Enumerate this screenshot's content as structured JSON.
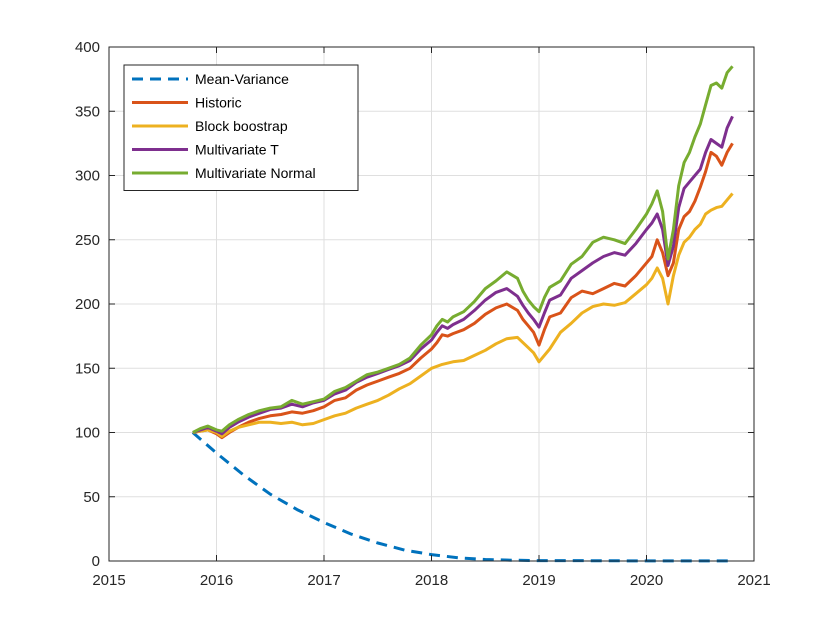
{
  "chart_data": {
    "type": "line",
    "title": "",
    "xlabel": "",
    "ylabel": "",
    "xlim": [
      2015,
      2021
    ],
    "ylim": [
      0,
      400
    ],
    "xticks": [
      2015,
      2016,
      2017,
      2018,
      2019,
      2020,
      2021
    ],
    "yticks": [
      0,
      50,
      100,
      150,
      200,
      250,
      300,
      350,
      400
    ],
    "grid": true,
    "legend": "top-left",
    "series": [
      {
        "name": "Mean-Variance",
        "color": "#0072BD",
        "dash": "dashed",
        "x": [
          2015.78,
          2016.0,
          2016.25,
          2016.5,
          2016.75,
          2017.0,
          2017.25,
          2017.5,
          2017.75,
          2018.0,
          2018.25,
          2018.5,
          2018.75,
          2019.0,
          2019.5,
          2020.0,
          2020.5,
          2020.8
        ],
        "y": [
          100,
          84,
          67,
          52,
          40,
          30,
          21,
          14,
          8.5,
          5,
          2.5,
          1.2,
          0.6,
          0.3,
          0.2,
          0.1,
          0.1,
          0.1
        ]
      },
      {
        "name": "Historic",
        "color": "#D95319",
        "dash": "solid",
        "x": [
          2015.78,
          2015.85,
          2015.92,
          2016.0,
          2016.05,
          2016.12,
          2016.2,
          2016.3,
          2016.4,
          2016.5,
          2016.6,
          2016.7,
          2016.8,
          2016.9,
          2017.0,
          2017.1,
          2017.2,
          2017.3,
          2017.4,
          2017.5,
          2017.6,
          2017.7,
          2017.8,
          2017.9,
          2018.0,
          2018.05,
          2018.1,
          2018.15,
          2018.2,
          2018.3,
          2018.4,
          2018.5,
          2018.6,
          2018.7,
          2018.8,
          2018.85,
          2018.9,
          2018.95,
          2019.0,
          2019.05,
          2019.1,
          2019.2,
          2019.3,
          2019.4,
          2019.5,
          2019.6,
          2019.7,
          2019.8,
          2019.9,
          2020.0,
          2020.05,
          2020.1,
          2020.15,
          2020.2,
          2020.25,
          2020.3,
          2020.35,
          2020.4,
          2020.45,
          2020.5,
          2020.55,
          2020.6,
          2020.65,
          2020.7,
          2020.75,
          2020.8
        ],
        "y": [
          100,
          101,
          102,
          99,
          96,
          100,
          104,
          108,
          111,
          113,
          114,
          116,
          115,
          117,
          120,
          125,
          127,
          133,
          137,
          140,
          143,
          146,
          150,
          158,
          165,
          170,
          176,
          175,
          177,
          180,
          185,
          192,
          197,
          200,
          195,
          188,
          183,
          178,
          168,
          180,
          190,
          193,
          205,
          210,
          208,
          212,
          216,
          214,
          222,
          232,
          237,
          250,
          240,
          222,
          232,
          258,
          268,
          272,
          280,
          291,
          303,
          318,
          315,
          308,
          318,
          325
        ]
      },
      {
        "name": "Block boostrap",
        "color": "#EDB120",
        "dash": "solid",
        "x": [
          2015.78,
          2015.85,
          2015.92,
          2016.0,
          2016.05,
          2016.12,
          2016.2,
          2016.3,
          2016.4,
          2016.5,
          2016.6,
          2016.7,
          2016.8,
          2016.9,
          2017.0,
          2017.1,
          2017.2,
          2017.3,
          2017.4,
          2017.5,
          2017.6,
          2017.7,
          2017.8,
          2017.9,
          2018.0,
          2018.1,
          2018.2,
          2018.3,
          2018.4,
          2018.5,
          2018.6,
          2018.7,
          2018.8,
          2018.85,
          2018.9,
          2018.95,
          2019.0,
          2019.1,
          2019.2,
          2019.3,
          2019.4,
          2019.5,
          2019.6,
          2019.7,
          2019.8,
          2019.9,
          2020.0,
          2020.05,
          2020.1,
          2020.15,
          2020.2,
          2020.25,
          2020.3,
          2020.35,
          2020.4,
          2020.45,
          2020.5,
          2020.55,
          2020.6,
          2020.65,
          2020.7,
          2020.75,
          2020.8
        ],
        "y": [
          100,
          101,
          102,
          100,
          97,
          101,
          104,
          106,
          108,
          108,
          107,
          108,
          106,
          107,
          110,
          113,
          115,
          119,
          122,
          125,
          129,
          134,
          138,
          144,
          150,
          153,
          155,
          156,
          160,
          164,
          169,
          173,
          174,
          170,
          166,
          162,
          155,
          165,
          178,
          185,
          193,
          198,
          200,
          199,
          201,
          208,
          215,
          220,
          228,
          220,
          200,
          222,
          238,
          248,
          252,
          258,
          262,
          270,
          273,
          275,
          276,
          281,
          286
        ]
      },
      {
        "name": "Multivariate T",
        "color": "#7E2F8E",
        "dash": "solid",
        "x": [
          2015.78,
          2015.85,
          2015.92,
          2016.0,
          2016.05,
          2016.12,
          2016.2,
          2016.3,
          2016.4,
          2016.5,
          2016.6,
          2016.7,
          2016.8,
          2016.9,
          2017.0,
          2017.1,
          2017.2,
          2017.3,
          2017.4,
          2017.5,
          2017.6,
          2017.7,
          2017.8,
          2017.9,
          2018.0,
          2018.05,
          2018.1,
          2018.15,
          2018.2,
          2018.3,
          2018.4,
          2018.5,
          2018.6,
          2018.7,
          2018.8,
          2018.85,
          2018.9,
          2018.95,
          2019.0,
          2019.05,
          2019.1,
          2019.2,
          2019.3,
          2019.4,
          2019.5,
          2019.6,
          2019.7,
          2019.8,
          2019.9,
          2020.0,
          2020.05,
          2020.1,
          2020.15,
          2020.2,
          2020.25,
          2020.3,
          2020.35,
          2020.4,
          2020.45,
          2020.5,
          2020.55,
          2020.6,
          2020.65,
          2020.7,
          2020.75,
          2020.8
        ],
        "y": [
          100,
          102,
          104,
          101,
          99,
          104,
          108,
          112,
          115,
          118,
          119,
          122,
          120,
          123,
          125,
          130,
          133,
          139,
          143,
          146,
          149,
          152,
          156,
          165,
          172,
          178,
          183,
          181,
          184,
          188,
          195,
          203,
          209,
          212,
          206,
          199,
          193,
          188,
          182,
          193,
          203,
          207,
          220,
          226,
          232,
          237,
          240,
          238,
          247,
          258,
          263,
          270,
          258,
          230,
          245,
          275,
          290,
          295,
          300,
          305,
          318,
          328,
          325,
          322,
          337,
          346
        ]
      },
      {
        "name": "Multivariate Normal",
        "color": "#77AC30",
        "dash": "solid",
        "x": [
          2015.78,
          2015.85,
          2015.92,
          2016.0,
          2016.05,
          2016.12,
          2016.2,
          2016.3,
          2016.4,
          2016.5,
          2016.6,
          2016.7,
          2016.8,
          2016.9,
          2017.0,
          2017.1,
          2017.2,
          2017.3,
          2017.4,
          2017.5,
          2017.6,
          2017.7,
          2017.8,
          2017.9,
          2018.0,
          2018.05,
          2018.1,
          2018.15,
          2018.2,
          2018.3,
          2018.4,
          2018.5,
          2018.6,
          2018.7,
          2018.8,
          2018.85,
          2018.9,
          2018.95,
          2019.0,
          2019.05,
          2019.1,
          2019.2,
          2019.3,
          2019.4,
          2019.5,
          2019.6,
          2019.7,
          2019.8,
          2019.9,
          2020.0,
          2020.05,
          2020.1,
          2020.15,
          2020.2,
          2020.25,
          2020.3,
          2020.35,
          2020.4,
          2020.45,
          2020.5,
          2020.55,
          2020.6,
          2020.65,
          2020.7,
          2020.75,
          2020.8
        ],
        "y": [
          100,
          103,
          105,
          102,
          101,
          106,
          110,
          114,
          117,
          119,
          120,
          125,
          122,
          124,
          126,
          132,
          135,
          140,
          145,
          147,
          150,
          153,
          158,
          168,
          176,
          183,
          188,
          186,
          190,
          194,
          202,
          212,
          218,
          225,
          220,
          210,
          203,
          198,
          194,
          205,
          213,
          218,
          231,
          237,
          248,
          252,
          250,
          247,
          258,
          270,
          278,
          288,
          272,
          235,
          258,
          292,
          310,
          318,
          330,
          340,
          355,
          370,
          372,
          368,
          380,
          385
        ]
      }
    ]
  }
}
